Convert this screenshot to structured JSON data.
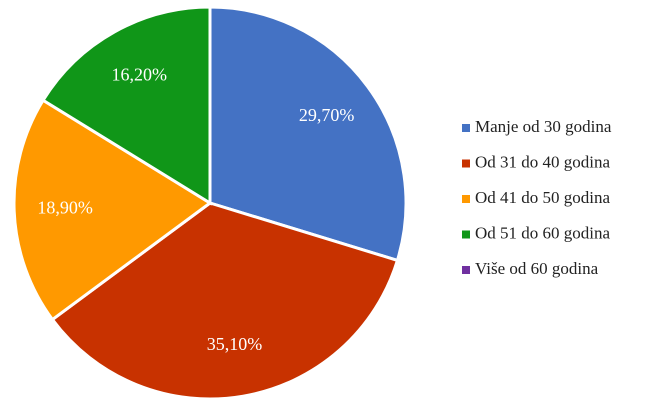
{
  "chart_data": {
    "type": "pie",
    "categories": [
      "Manje od 30 godina",
      "Od 31 do 40 godina",
      "Od 41 do 50 godina",
      "Od 51 do 60 godina",
      "Više od 60 godina"
    ],
    "values": [
      29.7,
      35.1,
      18.9,
      16.2,
      0
    ],
    "value_labels": [
      "29,70%",
      "35,10%",
      "18,90%",
      "16,20%",
      null
    ],
    "colors": [
      "#4472c4",
      "#c83200",
      "#ff9900",
      "#109618",
      "#7030a0"
    ],
    "legend": "right"
  }
}
